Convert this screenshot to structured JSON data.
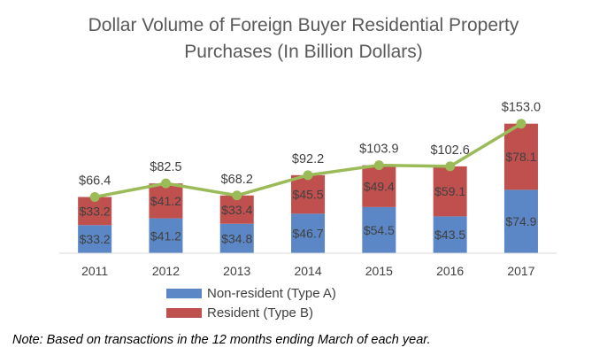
{
  "colors": {
    "non_resident": "#5b87c6",
    "resident": "#bf504d",
    "total_line": "#9bbb59",
    "axis": "#d9d9d9"
  },
  "legend": {
    "non_resident_label": "Non-resident (Type A)",
    "resident_label": "Resident (Type B)"
  },
  "note": "Note: Based on transactions in the 12 months ending March of each year.",
  "chart_data": {
    "type": "bar",
    "stacked": true,
    "title_line1": "Dollar Volume of Foreign Buyer Residential Property",
    "title_line2": "Purchases (In Billion Dollars)",
    "categories": [
      "2011",
      "2012",
      "2013",
      "2014",
      "2015",
      "2016",
      "2017"
    ],
    "series": [
      {
        "name": "Non-resident (Type A)",
        "values": [
          33.2,
          41.2,
          34.8,
          46.7,
          54.5,
          43.5,
          74.9
        ],
        "labels": [
          "$33.2",
          "$41.2",
          "$34.8",
          "$46.7",
          "$54.5",
          "$43.5",
          "$74.9"
        ]
      },
      {
        "name": "Resident (Type B)",
        "values": [
          33.2,
          41.2,
          33.4,
          45.5,
          49.4,
          59.1,
          78.1
        ],
        "labels": [
          "$33.2",
          "$41.2",
          "$33.4",
          "$45.5",
          "$49.4",
          "$59.1",
          "$78.1"
        ]
      }
    ],
    "total_line": {
      "values": [
        66.4,
        82.5,
        68.2,
        92.2,
        103.9,
        102.6,
        153.0
      ],
      "labels": [
        "$66.4",
        "$82.5",
        "$68.2",
        "$92.2",
        "$103.9",
        "$102.6",
        "$153.0"
      ]
    },
    "ylim": [
      0,
      160
    ],
    "grid": false,
    "legend_position": "bottom"
  }
}
